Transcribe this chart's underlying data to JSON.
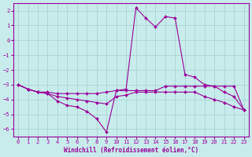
{
  "title": "",
  "xlabel": "Windchill (Refroidissement éolien,°C)",
  "ylabel": "",
  "bg_color": "#c8ecec",
  "grid_color": "#aad4d4",
  "line_color": "#990099",
  "marker_color": "#990099",
  "xlim": [
    -0.5,
    23.5
  ],
  "ylim": [
    -6.5,
    2.5
  ],
  "yticks": [
    2,
    1,
    0,
    -1,
    -2,
    -3,
    -4,
    -5,
    -6
  ],
  "xticks": [
    0,
    1,
    2,
    3,
    4,
    5,
    6,
    7,
    8,
    9,
    10,
    11,
    12,
    13,
    14,
    15,
    16,
    17,
    18,
    19,
    20,
    21,
    22,
    23
  ],
  "line1_x": [
    0,
    1,
    2,
    3,
    4,
    5,
    6,
    7,
    8,
    9,
    10,
    11,
    12,
    13,
    14,
    15,
    16,
    17,
    18,
    19,
    20,
    21,
    22,
    23
  ],
  "line1_y": [
    -3.0,
    -3.3,
    -3.5,
    -3.6,
    -4.1,
    -4.4,
    -4.5,
    -4.8,
    -5.3,
    -6.2,
    -3.4,
    -3.3,
    2.2,
    1.5,
    0.9,
    1.6,
    1.5,
    -2.3,
    -2.5,
    -3.0,
    -3.1,
    -3.5,
    -3.8,
    -4.7
  ],
  "line2_x": [
    0,
    1,
    2,
    3,
    4,
    5,
    6,
    7,
    8,
    9,
    10,
    11,
    12,
    13,
    14,
    15,
    16,
    17,
    18,
    19,
    20,
    21,
    22,
    23
  ],
  "line2_y": [
    -3.0,
    -3.3,
    -3.5,
    -3.5,
    -3.6,
    -3.6,
    -3.6,
    -3.6,
    -3.6,
    -3.5,
    -3.4,
    -3.4,
    -3.4,
    -3.4,
    -3.4,
    -3.1,
    -3.1,
    -3.1,
    -3.1,
    -3.1,
    -3.1,
    -3.1,
    -3.1,
    -4.7
  ],
  "line3_x": [
    0,
    1,
    2,
    3,
    4,
    5,
    6,
    7,
    8,
    9,
    10,
    11,
    12,
    13,
    14,
    15,
    16,
    17,
    18,
    19,
    20,
    21,
    22,
    23
  ],
  "line3_y": [
    -3.0,
    -3.3,
    -3.5,
    -3.6,
    -3.8,
    -3.9,
    -4.0,
    -4.1,
    -4.2,
    -4.3,
    -3.8,
    -3.7,
    -3.5,
    -3.5,
    -3.5,
    -3.5,
    -3.5,
    -3.5,
    -3.5,
    -3.8,
    -4.0,
    -4.2,
    -4.5,
    -4.7
  ]
}
